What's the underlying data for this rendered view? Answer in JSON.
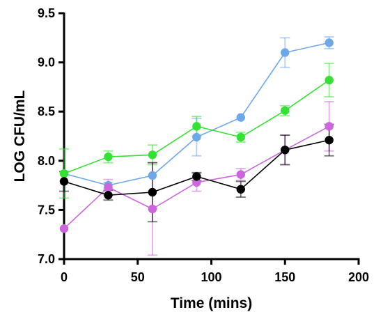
{
  "chart_data": {
    "type": "line",
    "title": "",
    "xlabel": "Time (mins)",
    "ylabel": "LOG CFU/mL",
    "xlim": [
      0,
      200
    ],
    "ylim": [
      7.0,
      9.5
    ],
    "x_ticks": [
      0,
      50,
      100,
      150,
      200
    ],
    "y_ticks": [
      7.0,
      7.5,
      8.0,
      8.5,
      9.0,
      9.5
    ],
    "x_tick_labels": [
      "0",
      "50",
      "100",
      "150",
      "200"
    ],
    "y_tick_labels": [
      "7.0",
      "7.5",
      "8.0",
      "8.5",
      "9.0",
      "9.5"
    ],
    "grid": false,
    "legend": "none",
    "x": [
      0,
      30,
      60,
      90,
      120,
      150,
      180
    ],
    "series": [
      {
        "color": "#6fa8e8",
        "values": [
          7.87,
          7.75,
          7.85,
          8.24,
          8.44,
          9.1,
          9.2
        ],
        "error": [
          0.0,
          0.03,
          0.0,
          0.19,
          0.0,
          0.15,
          0.06
        ]
      },
      {
        "color": "#33e233",
        "values": [
          7.87,
          8.04,
          8.06,
          8.35,
          8.24,
          8.51,
          8.82
        ],
        "error": [
          0.25,
          0.06,
          0.1,
          0.1,
          0.05,
          0.05,
          0.17
        ]
      },
      {
        "color": "#cc66dd",
        "values": [
          7.31,
          7.73,
          7.51,
          7.78,
          7.86,
          8.11,
          8.35
        ],
        "error": [
          0.0,
          0.08,
          0.47,
          0.09,
          0.06,
          0.15,
          0.25
        ]
      },
      {
        "color": "#000000",
        "values": [
          7.79,
          7.65,
          7.68,
          7.84,
          7.71,
          8.11,
          8.21
        ],
        "error": [
          0.1,
          0.05,
          0.3,
          0.04,
          0.08,
          0.15,
          0.16
        ]
      }
    ]
  }
}
